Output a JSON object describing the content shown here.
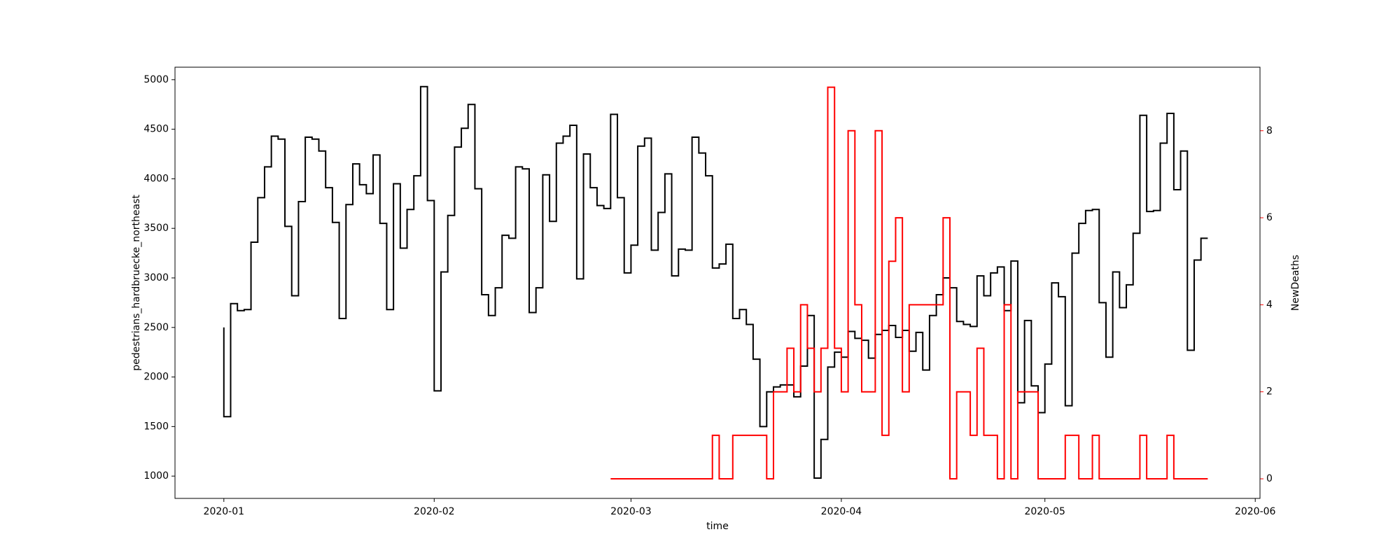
{
  "chart_data": {
    "type": "line",
    "drawstyle": "steps-pre",
    "x_label": "time",
    "y_label": "pedestrians_hardbruecke_northeast",
    "y2_label": "NewDeaths",
    "x": [
      0,
      1,
      2,
      3,
      4,
      5,
      6,
      7,
      8,
      9,
      10,
      11,
      12,
      13,
      14,
      15,
      16,
      17,
      18,
      19,
      20,
      21,
      22,
      23,
      24,
      25,
      26,
      27,
      28,
      29,
      30,
      31,
      32,
      33,
      34,
      35,
      36,
      37,
      38,
      39,
      40,
      41,
      42,
      43,
      44,
      45,
      46,
      47,
      48,
      49,
      50,
      51,
      52,
      53,
      54,
      55,
      56,
      57,
      58,
      59,
      60,
      61,
      62,
      63,
      64,
      65,
      66,
      67,
      68,
      69,
      70,
      71,
      72,
      73,
      74,
      75,
      76,
      77,
      78,
      79,
      80,
      81,
      82,
      83,
      84,
      85,
      86,
      87,
      88,
      89,
      90,
      91,
      92,
      93,
      94,
      95,
      96,
      97,
      98,
      99,
      100,
      101,
      102,
      103,
      104,
      105,
      106,
      107,
      108,
      109,
      110,
      111,
      112,
      113,
      114,
      115,
      116,
      117,
      118,
      119,
      120,
      121,
      122,
      123,
      124,
      125,
      126,
      127,
      128,
      129,
      130,
      131,
      132,
      133,
      134,
      135,
      136,
      137,
      138,
      139,
      140,
      141,
      142,
      143,
      144,
      145
    ],
    "series": [
      {
        "name": "pedestrians_hardbruecke_northeast",
        "color": "#000000",
        "values": [
          2500,
          1600,
          2740,
          2670,
          2680,
          3360,
          3810,
          4120,
          4430,
          4400,
          3520,
          2820,
          3770,
          4420,
          4400,
          4280,
          3910,
          3560,
          2590,
          3740,
          4150,
          3940,
          3850,
          4240,
          3550,
          2680,
          3950,
          3300,
          3690,
          4030,
          4930,
          3780,
          1860,
          3060,
          3630,
          4320,
          4510,
          4750,
          3900,
          2830,
          2620,
          2900,
          3430,
          3400,
          4120,
          4100,
          2650,
          2900,
          4040,
          3570,
          4360,
          4430,
          4540,
          2990,
          4250,
          3910,
          3730,
          3700,
          4650,
          3810,
          3050,
          3330,
          4330,
          4410,
          3280,
          3660,
          4050,
          3020,
          3290,
          3280,
          4420,
          4260,
          4030,
          3100,
          3140,
          3340,
          2590,
          2680,
          2530,
          2180,
          1500,
          1850,
          1900,
          1920,
          1920,
          1800,
          2110,
          2620,
          980,
          1370,
          2100,
          2250,
          2200,
          2460,
          2390,
          2370,
          2190,
          2430,
          2470,
          2520,
          2400,
          2470,
          2260,
          2450,
          2070,
          2620,
          2830,
          3000,
          2900,
          2560,
          2530,
          2510,
          3020,
          2820,
          3050,
          3110,
          2670,
          3170,
          1740,
          2570,
          1910,
          1640,
          2130,
          2950,
          2810,
          1710,
          3250,
          3550,
          3680,
          3690,
          2750,
          2200,
          3060,
          2700,
          2930,
          3450,
          4640,
          3670,
          3680,
          4360,
          4660,
          3890,
          4280,
          2270,
          3180,
          3400
        ]
      },
      {
        "name": "NewDeaths",
        "color": "#ff0000",
        "axis": "y2",
        "values": [
          null,
          null,
          null,
          null,
          null,
          null,
          null,
          null,
          null,
          null,
          null,
          null,
          null,
          null,
          null,
          null,
          null,
          null,
          null,
          null,
          null,
          null,
          null,
          null,
          null,
          null,
          null,
          null,
          null,
          null,
          null,
          null,
          null,
          null,
          null,
          null,
          null,
          null,
          null,
          null,
          null,
          null,
          null,
          null,
          null,
          null,
          null,
          null,
          null,
          null,
          null,
          null,
          null,
          null,
          null,
          null,
          null,
          0,
          0,
          0,
          0,
          0,
          0,
          0,
          0,
          0,
          0,
          0,
          0,
          0,
          0,
          0,
          0,
          1,
          0,
          0,
          1,
          1,
          1,
          1,
          1,
          0,
          2,
          2,
          3,
          2,
          4,
          3,
          2,
          3,
          9,
          3,
          2,
          8,
          4,
          2,
          2,
          8,
          1,
          5,
          6,
          2,
          4,
          4,
          4,
          4,
          4,
          6,
          0,
          2,
          2,
          1,
          3,
          1,
          1,
          0,
          4,
          0,
          2,
          2,
          2,
          0,
          0,
          0,
          0,
          1,
          1,
          0,
          0,
          1,
          0,
          0,
          0,
          0,
          0,
          0,
          1,
          0,
          0,
          0,
          1,
          0,
          0,
          0,
          0,
          0
        ]
      }
    ],
    "xlim": [
      -7.2,
      152.7
    ],
    "xticks": [
      {
        "value": 0,
        "label": "2020-01"
      },
      {
        "value": 31,
        "label": "2020-02"
      },
      {
        "value": 60,
        "label": "2020-03"
      },
      {
        "value": 91,
        "label": "2020-04"
      },
      {
        "value": 121,
        "label": "2020-05"
      },
      {
        "value": 152,
        "label": "2020-06"
      }
    ],
    "ylim": [
      775,
      5126
    ],
    "yticks": [
      1000,
      1500,
      2000,
      2500,
      3000,
      3500,
      4000,
      4500,
      5000
    ],
    "y2lim": [
      -0.45,
      9.46
    ],
    "y2ticks": [
      0,
      2,
      4,
      6,
      8
    ],
    "grid": false
  }
}
